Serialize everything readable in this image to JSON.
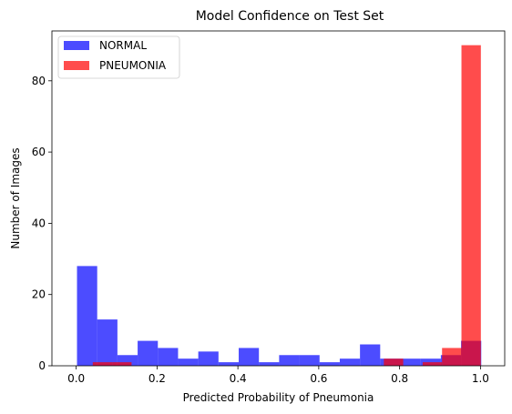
{
  "chart_data": {
    "type": "bar",
    "title": "Model Confidence on Test Set",
    "xlabel": "Predicted Probability of Pneumonia",
    "ylabel": "Number of Images",
    "xlim": [
      -0.06,
      1.06
    ],
    "ylim": [
      0,
      94
    ],
    "x_ticks": [
      {
        "value": 0.0,
        "label": "0.0"
      },
      {
        "value": 0.2,
        "label": "0.2"
      },
      {
        "value": 0.4,
        "label": "0.4"
      },
      {
        "value": 0.6,
        "label": "0.6"
      },
      {
        "value": 0.8,
        "label": "0.8"
      },
      {
        "value": 1.0,
        "label": "1.0"
      }
    ],
    "y_ticks": [
      {
        "value": 0,
        "label": "0"
      },
      {
        "value": 20,
        "label": "20"
      },
      {
        "value": 40,
        "label": "40"
      },
      {
        "value": 60,
        "label": "60"
      },
      {
        "value": 80,
        "label": "80"
      }
    ],
    "grid": false,
    "legend_position": "top-left",
    "series": [
      {
        "name": "NORMAL",
        "color": "#0000ff",
        "opacity": 0.7,
        "bin_edges": [
          0.002,
          0.052,
          0.102,
          0.152,
          0.202,
          0.252,
          0.302,
          0.352,
          0.402,
          0.452,
          0.502,
          0.552,
          0.602,
          0.652,
          0.702,
          0.752,
          0.802,
          0.852,
          0.902,
          0.952,
          1.002
        ],
        "values": [
          28,
          13,
          3,
          7,
          5,
          2,
          4,
          1,
          5,
          1,
          3,
          3,
          1,
          2,
          6,
          2,
          2,
          2,
          3,
          7
        ]
      },
      {
        "name": "PNEUMONIA",
        "color": "#ff0000",
        "opacity": 0.7,
        "bin_edges": [
          0.041,
          0.089,
          0.137,
          0.185,
          0.233,
          0.281,
          0.329,
          0.377,
          0.425,
          0.473,
          0.521,
          0.569,
          0.617,
          0.665,
          0.713,
          0.761,
          0.809,
          0.857,
          0.905,
          0.953,
          1.001
        ],
        "values": [
          1,
          1,
          0,
          0,
          0,
          0,
          0,
          0,
          0,
          0,
          0,
          0,
          0,
          0,
          0,
          2,
          0,
          1,
          5,
          90
        ]
      }
    ]
  }
}
